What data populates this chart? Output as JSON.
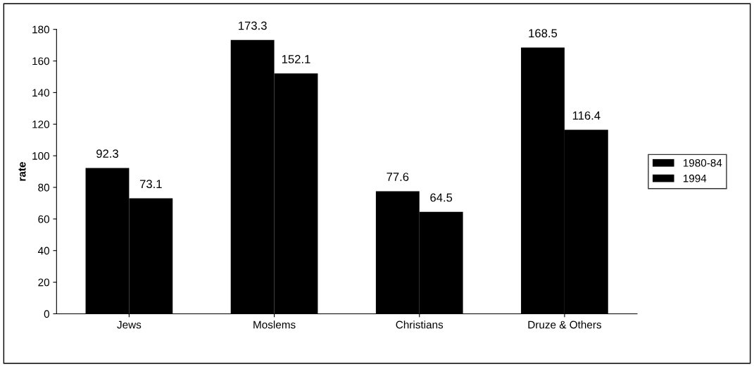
{
  "chart_data": {
    "type": "bar",
    "ylabel": "rate",
    "categories": [
      "Jews",
      "Moslems",
      "Christians",
      "Druze & Others"
    ],
    "series": [
      {
        "name": "1980-84",
        "color": "#000000",
        "values": [
          92.3,
          173.3,
          77.6,
          168.5
        ]
      },
      {
        "name": "1994",
        "color": "#000000",
        "values": [
          73.1,
          152.1,
          64.5,
          116.4
        ]
      }
    ],
    "ylim": [
      0,
      180
    ],
    "yticks": [
      0,
      20,
      40,
      60,
      80,
      100,
      120,
      140,
      160,
      180
    ],
    "data_labels": true,
    "legend": "right",
    "grid": false
  }
}
